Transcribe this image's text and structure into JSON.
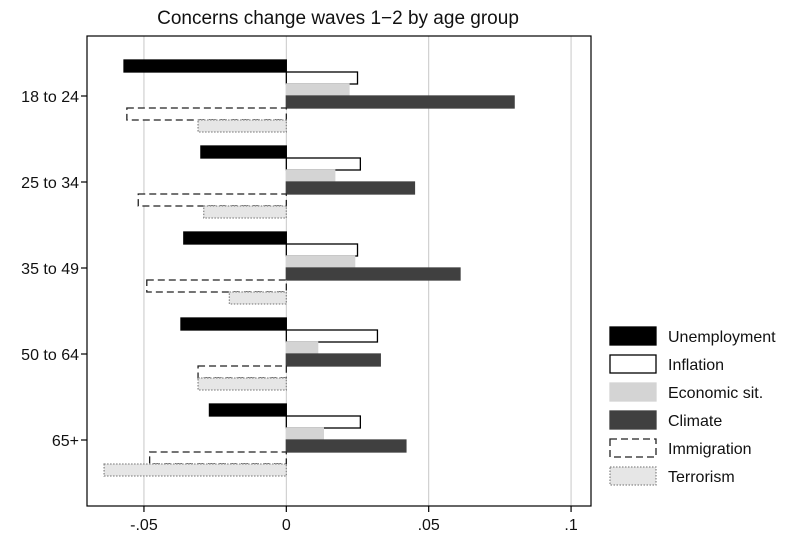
{
  "chart_data": {
    "type": "bar",
    "orientation": "horizontal",
    "title": "Concerns change waves 1−2 by age group",
    "xlabel": "",
    "ylabel": "",
    "xlim": [
      -0.07,
      0.107
    ],
    "xticks": [
      -0.05,
      0,
      0.05,
      0.1
    ],
    "xtick_labels": [
      "-.05",
      "0",
      ".05",
      ".1"
    ],
    "grid": "vertical lines at x ticks",
    "legend_position": "right",
    "categories": [
      "18 to 24",
      "25 to 34",
      "35 to 49",
      "50 to 64",
      "65+"
    ],
    "series": [
      {
        "name": "Unemployment",
        "style": "solid-black",
        "fill": "#000000",
        "stroke": "#000000",
        "values": [
          -0.057,
          -0.03,
          -0.036,
          -0.037,
          -0.027
        ]
      },
      {
        "name": "Inflation",
        "style": "white-outline",
        "fill": "#ffffff",
        "stroke": "#000000",
        "values": [
          0.025,
          0.026,
          0.025,
          0.032,
          0.026
        ]
      },
      {
        "name": "Economic sit.",
        "style": "light-grey",
        "fill": "#d4d4d4",
        "stroke": "#d4d4d4",
        "values": [
          0.022,
          0.017,
          0.024,
          0.011,
          0.013
        ]
      },
      {
        "name": "Climate",
        "style": "dark-grey",
        "fill": "#404040",
        "stroke": "#404040",
        "values": [
          0.08,
          0.045,
          0.061,
          0.033,
          0.042
        ]
      },
      {
        "name": "Immigration",
        "style": "dashed-outline",
        "fill": "#ffffff",
        "stroke": "#222222",
        "values": [
          -0.056,
          -0.052,
          -0.049,
          -0.031,
          -0.048
        ]
      },
      {
        "name": "Terrorism",
        "style": "dotted-light",
        "fill": "#e6e6e6",
        "stroke": "#8a8a8a",
        "values": [
          -0.031,
          -0.029,
          -0.02,
          -0.031,
          -0.064
        ]
      }
    ],
    "legend_labels": [
      "Unemployment",
      "Inflation",
      "Economic sit.",
      "Climate",
      "Immigration",
      "Terrorism"
    ]
  }
}
